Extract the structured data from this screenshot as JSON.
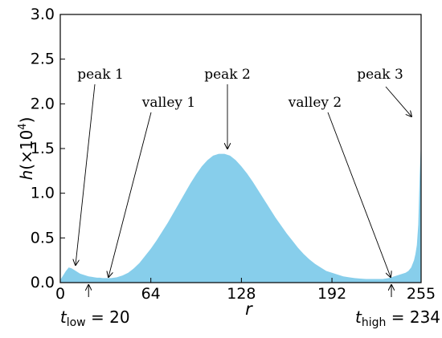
{
  "chart_data": {
    "type": "area",
    "xlabel": "r",
    "ylabel": "h(×10⁴)",
    "ylabel_parts": {
      "main": "h(×10",
      "exp": "4",
      "close": ")"
    },
    "xlim": [
      0,
      255
    ],
    "ylim": [
      0,
      3.0
    ],
    "x_ticks": [
      0,
      64,
      128,
      192,
      255
    ],
    "x_tick_labels": [
      "0",
      "64",
      "128",
      "192",
      "255"
    ],
    "y_ticks": [
      0.0,
      0.5,
      1.0,
      1.5,
      2.0,
      2.5,
      3.0
    ],
    "y_tick_labels": [
      "0.0",
      "0.5",
      "1.0",
      "1.5",
      "2.0",
      "2.5",
      "3.0"
    ],
    "fill_color": "#87CEEB",
    "series": [
      {
        "x": [
          0,
          2,
          4,
          6,
          8,
          10,
          12,
          14,
          16,
          18,
          20,
          22,
          24,
          26,
          28,
          30,
          32,
          34,
          36,
          38,
          40,
          42,
          44,
          48,
          52,
          56,
          60,
          64,
          68,
          72,
          76,
          80,
          84,
          88,
          92,
          96,
          100,
          104,
          108,
          112,
          116,
          120,
          124,
          128,
          132,
          136,
          140,
          144,
          148,
          152,
          156,
          160,
          164,
          168,
          172,
          176,
          180,
          184,
          188,
          192,
          196,
          200,
          204,
          208,
          212,
          216,
          220,
          224,
          228,
          232,
          234,
          236,
          238,
          240,
          242,
          244,
          246,
          248,
          250,
          251,
          252,
          253,
          254,
          255
        ],
        "y": [
          0.03,
          0.08,
          0.13,
          0.17,
          0.16,
          0.14,
          0.12,
          0.1,
          0.09,
          0.08,
          0.07,
          0.065,
          0.06,
          0.055,
          0.055,
          0.05,
          0.05,
          0.05,
          0.05,
          0.055,
          0.06,
          0.07,
          0.08,
          0.11,
          0.16,
          0.22,
          0.3,
          0.38,
          0.47,
          0.57,
          0.67,
          0.78,
          0.89,
          1.0,
          1.11,
          1.21,
          1.3,
          1.37,
          1.42,
          1.44,
          1.44,
          1.42,
          1.37,
          1.3,
          1.22,
          1.13,
          1.03,
          0.93,
          0.83,
          0.73,
          0.64,
          0.55,
          0.47,
          0.39,
          0.32,
          0.26,
          0.21,
          0.17,
          0.13,
          0.11,
          0.09,
          0.07,
          0.06,
          0.05,
          0.045,
          0.04,
          0.04,
          0.04,
          0.04,
          0.05,
          0.06,
          0.07,
          0.08,
          0.09,
          0.1,
          0.11,
          0.13,
          0.17,
          0.25,
          0.32,
          0.42,
          0.65,
          1.2,
          1.6
        ]
      }
    ],
    "annotations": [
      {
        "text": "peak 1",
        "x": 10,
        "y": 0.14
      },
      {
        "text": "valley 1",
        "x": 34,
        "y": 0.05
      },
      {
        "text": "peak 2",
        "x": 114,
        "y": 1.44
      },
      {
        "text": "valley 2",
        "x": 229,
        "y": 0.04
      },
      {
        "text": "peak 3",
        "x": 253,
        "y": 1.8
      }
    ],
    "thresholds": [
      {
        "var": "t",
        "sub": "low",
        "value": 20,
        "label_eq": "= 20"
      },
      {
        "var": "t",
        "sub": "high",
        "value": 234,
        "label_eq": "= 234"
      }
    ]
  }
}
